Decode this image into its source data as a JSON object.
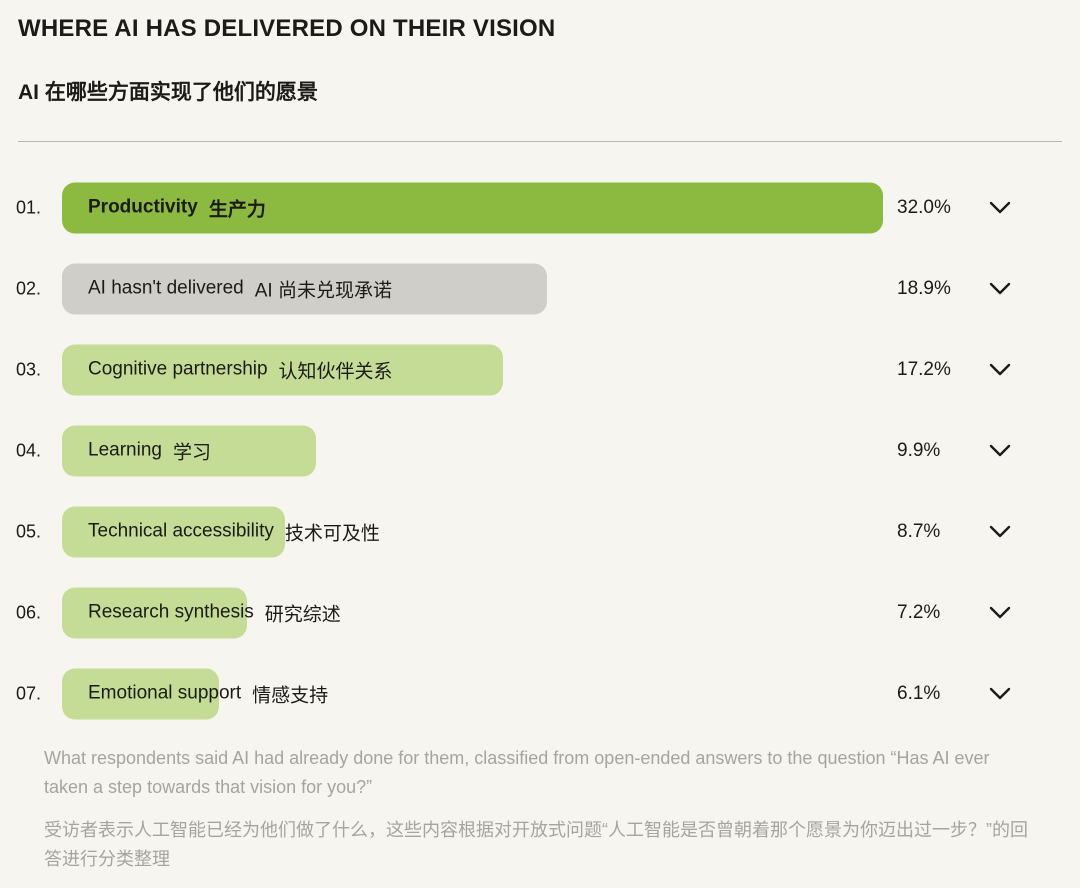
{
  "page": {
    "background": "#f7f5ef"
  },
  "header": {
    "title": "WHERE AI HAS DELIVERED ON THEIR VISION",
    "subtitle_zh": "AI 在哪些方面实现了他们的愿景"
  },
  "colors": {
    "background": "#f7f5ef",
    "text": "#1c1b18",
    "muted_text": "#a6a49d",
    "divider": "#b8b6af",
    "accent_green": "#8cb93f",
    "light_green": "#c5dc97",
    "gray": "#cfcec8"
  },
  "chart_data": {
    "type": "bar",
    "orientation": "horizontal",
    "value_unit": "%",
    "scale_max": 32.0,
    "title": "WHERE AI HAS DELIVERED ON THEIR VISION",
    "title_zh": "AI 在哪些方面实现了他们的愿景",
    "categories": [
      "Productivity 生产力",
      "AI hasn't delivered AI 尚未兑现承诺",
      "Cognitive partnership 认知伙伴关系",
      "Learning 学习",
      "Technical accessibility 技术可及性",
      "Research synthesis 研究综述",
      "Emotional support 情感支持"
    ],
    "values": [
      32.0,
      18.9,
      17.2,
      9.9,
      8.7,
      7.2,
      6.1
    ],
    "rows": [
      {
        "rank": "01.",
        "label_en": "Productivity",
        "label_zh": "生产力",
        "value": 32.0,
        "value_label": "32.0%",
        "color": "accent_green",
        "bold": true
      },
      {
        "rank": "02.",
        "label_en": "AI hasn't delivered",
        "label_zh": "AI 尚未兑现承诺",
        "value": 18.9,
        "value_label": "18.9%",
        "color": "gray",
        "bold": false
      },
      {
        "rank": "03.",
        "label_en": "Cognitive partnership",
        "label_zh": "认知伙伴关系",
        "value": 17.2,
        "value_label": "17.2%",
        "color": "light_green",
        "bold": false
      },
      {
        "rank": "04.",
        "label_en": "Learning",
        "label_zh": "学习",
        "value": 9.9,
        "value_label": "9.9%",
        "color": "light_green",
        "bold": false
      },
      {
        "rank": "05.",
        "label_en": "Technical accessibility",
        "label_zh": "技术可及性",
        "value": 8.7,
        "value_label": "8.7%",
        "color": "light_green",
        "bold": false
      },
      {
        "rank": "06.",
        "label_en": "Research synthesis",
        "label_zh": "研究综述",
        "value": 7.2,
        "value_label": "7.2%",
        "color": "light_green",
        "bold": false
      },
      {
        "rank": "07.",
        "label_en": "Emotional support",
        "label_zh": "情感支持",
        "value": 6.1,
        "value_label": "6.1%",
        "color": "light_green",
        "bold": false
      }
    ]
  },
  "footer": {
    "note_en": "What respondents said AI had already done for them, classified from open-ended answers to the question “Has AI ever taken a step towards that vision for you?”",
    "note_zh": "受访者表示人工智能已经为他们做了什么，这些内容根据对开放式问题“人工智能是否曾朝着那个愿景为你迈出过一步？”的回答进行分类整理"
  },
  "icons": {
    "row_expander": "chevron-down-icon"
  }
}
